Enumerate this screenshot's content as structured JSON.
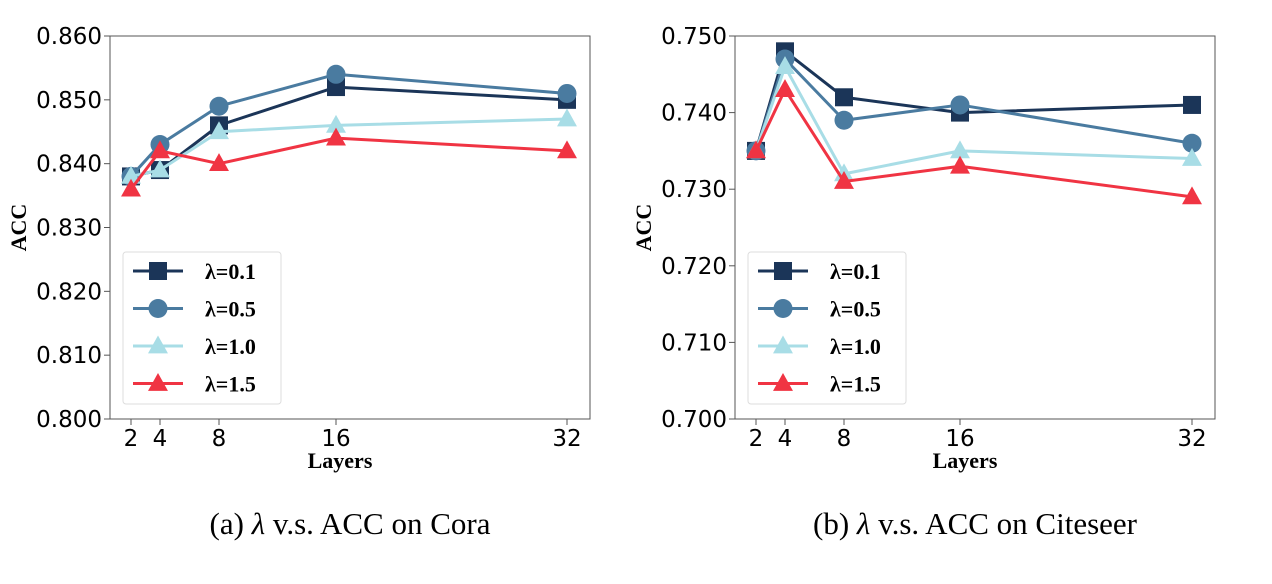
{
  "chart_data": [
    {
      "type": "line",
      "caption_prefix": "(a)",
      "caption_symbol": "λ",
      "caption_text": "v.s. ACC on Cora",
      "xlabel": "Layers",
      "ylabel": "ACC",
      "x": [
        2,
        4,
        8,
        16,
        32
      ],
      "xticks": [
        "2",
        "4",
        "8",
        "16",
        "32"
      ],
      "ylim": [
        0.8,
        0.86
      ],
      "yticks": [
        "0.800",
        "0.810",
        "0.820",
        "0.830",
        "0.840",
        "0.850",
        "0.860"
      ],
      "legend_position": "lower-left",
      "series": [
        {
          "name": "λ=0.1",
          "marker": "square",
          "color": "#1b3558",
          "values": [
            0.838,
            0.839,
            0.846,
            0.852,
            0.85
          ]
        },
        {
          "name": "λ=0.5",
          "marker": "circle",
          "color": "#4a7ba0",
          "values": [
            0.838,
            0.843,
            0.849,
            0.854,
            0.851
          ]
        },
        {
          "name": "λ=1.0",
          "marker": "triangle",
          "color": "#a8dde6",
          "values": [
            0.838,
            0.839,
            0.845,
            0.846,
            0.847
          ]
        },
        {
          "name": "λ=1.5",
          "marker": "triangle",
          "color": "#f03443",
          "values": [
            0.836,
            0.842,
            0.84,
            0.844,
            0.842
          ]
        }
      ]
    },
    {
      "type": "line",
      "caption_prefix": "(b)",
      "caption_symbol": "λ",
      "caption_text": "v.s. ACC on Citeseer",
      "xlabel": "Layers",
      "ylabel": "ACC",
      "x": [
        2,
        4,
        8,
        16,
        32
      ],
      "xticks": [
        "2",
        "4",
        "8",
        "16",
        "32"
      ],
      "ylim": [
        0.7,
        0.75
      ],
      "yticks": [
        "0.700",
        "0.710",
        "0.720",
        "0.730",
        "0.740",
        "0.750"
      ],
      "legend_position": "lower-left",
      "series": [
        {
          "name": "λ=0.1",
          "marker": "square",
          "color": "#1b3558",
          "values": [
            0.735,
            0.748,
            0.742,
            0.74,
            0.741
          ]
        },
        {
          "name": "λ=0.5",
          "marker": "circle",
          "color": "#4a7ba0",
          "values": [
            0.735,
            0.747,
            0.739,
            0.741,
            0.736
          ]
        },
        {
          "name": "λ=1.0",
          "marker": "triangle",
          "color": "#a8dde6",
          "values": [
            0.735,
            0.746,
            0.732,
            0.735,
            0.734
          ]
        },
        {
          "name": "λ=1.5",
          "marker": "triangle",
          "color": "#f03443",
          "values": [
            0.735,
            0.743,
            0.731,
            0.733,
            0.729
          ]
        }
      ]
    }
  ]
}
